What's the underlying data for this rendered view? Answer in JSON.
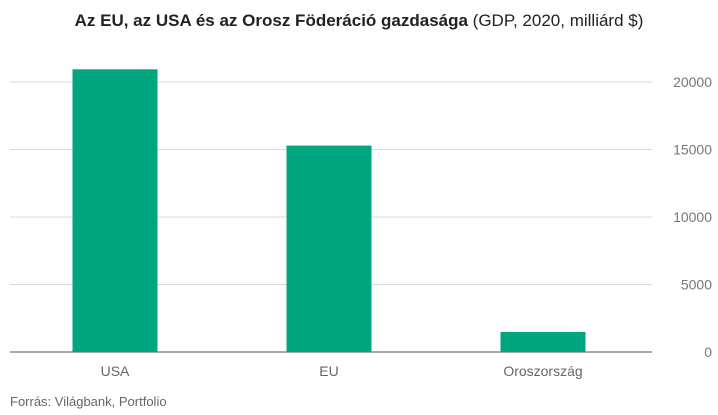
{
  "chart_data": {
    "type": "bar",
    "title_bold": "Az EU, az USA és az Orosz Föderáció gazdasága",
    "title_rest": " (GDP, 2020, milliárd $)",
    "categories": [
      "USA",
      "EU",
      "Oroszország"
    ],
    "values": [
      20940,
      15290,
      1480
    ],
    "ylim": [
      0,
      20000
    ],
    "yticks": [
      "0",
      "5000",
      "10000",
      "15000",
      "20000"
    ],
    "ytick_values": [
      0,
      5000,
      10000,
      15000,
      20000
    ],
    "y_axis_side": "right",
    "grid": true,
    "bar_color": "#00a67e",
    "source": "Forrás: Világbank, Portfolio"
  }
}
